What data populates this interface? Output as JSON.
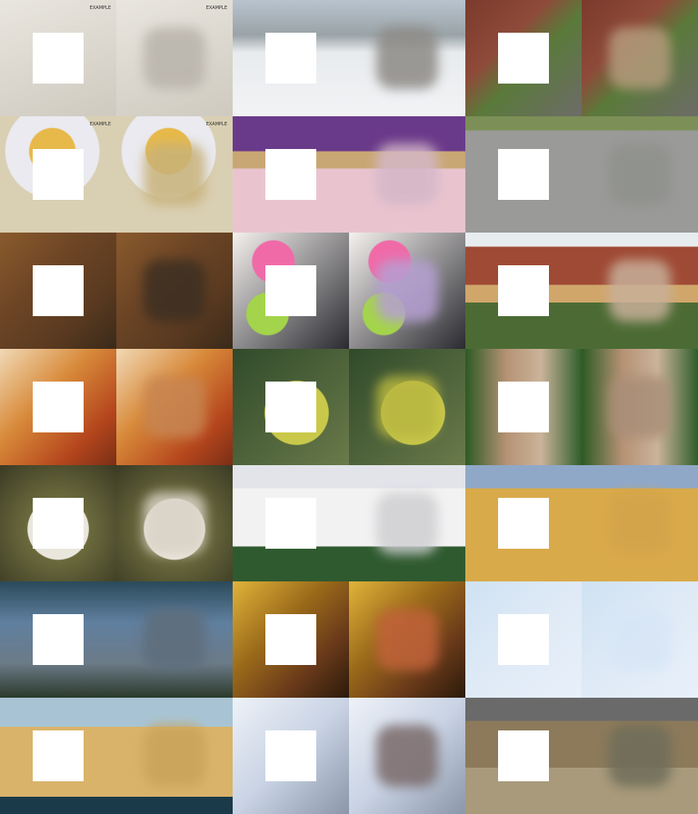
{
  "grid": {
    "rows": 7,
    "pairs_per_row": 3,
    "layout": "each pair = masked input (left) + inpainted output (right)"
  },
  "pairs": [
    {
      "scene": "footprints in snow",
      "bg": "linear-gradient(160deg,#e9e6df,#d9d5cc 60%,#cfcabf)",
      "fill": "#b9b4ab"
    },
    {
      "scene": "snowy mountain range",
      "bg": "linear-gradient(180deg,#b8c3cf 0%,#9aa3a6 30%,#e8ebee 45%,#f2f3f5 100%)",
      "fill": "#8d8a86"
    },
    {
      "scene": "collie dog by brick wall",
      "bg": "linear-gradient(135deg,#7b3a2c 0%,#8e4a39 35%,#5a7a3a 55%,#6d6b68 100%)",
      "fill": "#b59a7c"
    },
    {
      "scene": "teacup of soup",
      "bg": "radial-gradient(circle at 45% 30%,#e7b94a 0 22%,#eaeaf0 23% 45%,#d9cfb3 46%)",
      "fill": "#c8b27a"
    },
    {
      "scene": "doll bed with purple headboard",
      "bg": "linear-gradient(180deg,#6a3a8a 0 30%,#c9a774 30% 45%,#e9c4cf 45% 100%)",
      "fill": "#d4b7c8"
    },
    {
      "scene": "grey road with grass",
      "bg": "linear-gradient(180deg,#7c8f56 0 12%,#9a9a98 12% 100%)",
      "fill": "#8f918d"
    },
    {
      "scene": "porcupine",
      "bg": "linear-gradient(135deg,#8a5a2c 0%,#6b4425 40%,#5a3a20 70%,#3a2a1a 100%)",
      "fill": "#3d2f22"
    },
    {
      "scene": "macarons",
      "bg": "radial-gradient(circle at 35% 25%,#f06aa8 0 18%,transparent 19%),radial-gradient(circle at 30% 70%,#a4d44b 0 18%,transparent 19%),linear-gradient(135deg,#f4f1ee,#2a2a30)",
      "fill": "#b59fd2"
    },
    {
      "scene": "red barn and picnic table",
      "bg": "linear-gradient(180deg,#e7ecef 0 12%,#9f4a35 12% 45%,#d0a66a 45% 60%,#4c6b34 60% 100%)",
      "fill": "#c8b09a"
    },
    {
      "scene": "golden fur closeup",
      "bg": "linear-gradient(135deg,#f1d9b6 0%,#d88a3a 40%,#b5461d 75%,#7a2e16 100%)",
      "fill": "#c78552"
    },
    {
      "scene": "jackfruit on tree",
      "bg": "radial-gradient(circle at 55% 55%,#c9c84a 0 35%,transparent 36%),linear-gradient(135deg,#304a2a,#6a7a4a)",
      "fill": "#b7b640"
    },
    {
      "scene": "cougar",
      "bg": "linear-gradient(90deg,#2d5a24 0%,#b59274 35%,#cbb39a 65%,#2f5e2a 100%)",
      "fill": "#a98e78"
    },
    {
      "scene": "monkey face",
      "bg": "radial-gradient(circle at 50% 55%,#e9e6dc 0 35%,#6b6a3d 36%,#3a3a24 100%)",
      "fill": "#d8d2c6"
    },
    {
      "scene": "white camper van",
      "bg": "linear-gradient(180deg,#e2e4ea 0 20%,#f2f2f2 20% 70%,#2f5a2f 70% 100%)",
      "fill": "#cfcfd2"
    },
    {
      "scene": "wheat field with harvester",
      "bg": "linear-gradient(180deg,#8fa8c8 0 20%,#d9aa4a 20% 100%)",
      "fill": "#d3a44a"
    },
    {
      "scene": "whale in water",
      "bg": "linear-gradient(180deg,#2a4a5a 0%,#5f7f9f 35%,#6c7b88 70%,#2b3a2a 100%)",
      "fill": "#5e6d7b"
    },
    {
      "scene": "tree frog figure painting",
      "bg": "linear-gradient(135deg,#e1b33a 0%,#9a6a1a 40%,#6a3a1a 70%,#2a1a0a 100%)",
      "fill": "#c1623a"
    },
    {
      "scene": "pale snow texture",
      "bg": "linear-gradient(135deg,#cfe2f3,#dfeaf6 50%,#e8f0fa)",
      "fill": "#d7e6f6"
    },
    {
      "scene": "cardboard box",
      "bg": "linear-gradient(180deg,#a8c4d4 0 25%,#d9b36a 25% 85%,#1a3a4a 85% 100%)",
      "fill": "#c9a35a"
    },
    {
      "scene": "metal tower crane",
      "bg": "linear-gradient(135deg,#eef2f8,#c9d3e4 50%,#8a97a9)",
      "fill": "#7a6a6a"
    },
    {
      "scene": "bird in tree branches",
      "bg": "linear-gradient(180deg,#6a6a6a 0 20%,#8c7a5a 20% 60%,#a89a7a 60% 100%)",
      "fill": "#6f6d5a"
    }
  ],
  "watermarks": [
    {
      "pair": 0,
      "text": "EXAMPLE"
    },
    {
      "pair": 3,
      "text": "EXAMPLE"
    }
  ]
}
